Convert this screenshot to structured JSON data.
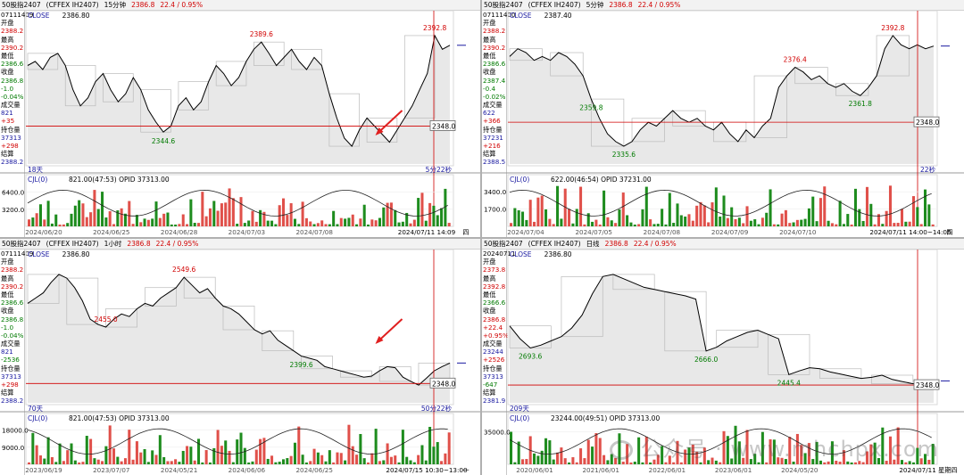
{
  "panels": [
    {
      "id": "p1",
      "title": {
        "symbol": "50股指2407",
        "code": "(CFFEX IH2407)",
        "period": "15分钟",
        "price": "2386.8",
        "change": "22.4 / 0.95%"
      },
      "date_code": "07111409",
      "close_text": "CLOSE",
      "close_value": "2386.80",
      "sidebar": [
        {
          "t": "开盘",
          "c": "k"
        },
        {
          "t": "2388.2",
          "c": "red"
        },
        {
          "t": "最高",
          "c": "k"
        },
        {
          "t": "2390.2",
          "c": "red"
        },
        {
          "t": "最低",
          "c": "k"
        },
        {
          "t": "2386.6",
          "c": "green"
        },
        {
          "t": "收盘",
          "c": "k"
        },
        {
          "t": "2386.8",
          "c": "green"
        },
        {
          "t": "-1.0",
          "c": "green"
        },
        {
          "t": "-0.04%",
          "c": "green"
        },
        {
          "t": "成交量",
          "c": "k"
        },
        {
          "t": "821",
          "c": "blue"
        },
        {
          "t": "+35",
          "c": "red"
        },
        {
          "t": "持仓量",
          "c": "k"
        },
        {
          "t": "37313",
          "c": "blue"
        },
        {
          "t": "+298",
          "c": "red"
        },
        {
          "t": "结算",
          "c": "k"
        },
        {
          "t": "2388.2",
          "c": "blue"
        }
      ],
      "bottom_left": "18天",
      "bottom_right": "5分22秒",
      "price_axis": "2348.0",
      "vol_label": "CJL(0)",
      "vol_info": "821.00(47:53)  OPID 37313.00",
      "vol_ticks": [
        "6400.0",
        "3200.0"
      ],
      "dates": [
        "2024/06/20",
        "2024/06/25",
        "2024/06/28",
        "2024/07/03",
        "2024/07/08",
        "2024/07/11 14:09",
        "四"
      ]
    },
    {
      "id": "p2",
      "title": {
        "symbol": "50股指2407",
        "code": "(CFFEX IH2407)",
        "period": "5分钟",
        "price": "2386.8",
        "change": "22.4 / 0.95%"
      },
      "date_code": "07111400",
      "close_text": "CLOSE",
      "close_value": "2387.40",
      "sidebar": [
        {
          "t": "开盘",
          "c": "k"
        },
        {
          "t": "2388.2",
          "c": "red"
        },
        {
          "t": "最高",
          "c": "k"
        },
        {
          "t": "2390.2",
          "c": "red"
        },
        {
          "t": "最低",
          "c": "k"
        },
        {
          "t": "2386.6",
          "c": "green"
        },
        {
          "t": "收盘",
          "c": "k"
        },
        {
          "t": "2387.4",
          "c": "green"
        },
        {
          "t": "-0.4",
          "c": "green"
        },
        {
          "t": "-0.02%",
          "c": "green"
        },
        {
          "t": "成交量",
          "c": "k"
        },
        {
          "t": "622",
          "c": "blue"
        },
        {
          "t": "+366",
          "c": "red"
        },
        {
          "t": "持仓量",
          "c": "k"
        },
        {
          "t": "37231",
          "c": "blue"
        },
        {
          "t": "+216",
          "c": "red"
        },
        {
          "t": "结算",
          "c": "k"
        },
        {
          "t": "2388.5",
          "c": "blue"
        }
      ],
      "bottom_left": "",
      "bottom_right": "22秒",
      "price_axis": "2348.0",
      "vol_label": "CJL(0)",
      "vol_info": "622.00(46:54)  OPID 37231.00",
      "vol_ticks": [
        "3400.0",
        "1700.0"
      ],
      "dates": [
        "2024/07/04",
        "2024/07/05",
        "2024/07/08",
        "2024/07/09",
        "2024/07/10",
        "2024/07/11 14:00~14:05",
        "四"
      ]
    },
    {
      "id": "p3",
      "title": {
        "symbol": "50股指2407",
        "code": "(CFFEX IH2407)",
        "period": "1小时",
        "price": "2386.8",
        "change": "22.4 / 0.95%"
      },
      "date_code": "07111409",
      "close_text": "CLOSE",
      "close_value": "2386.80",
      "sidebar": [
        {
          "t": "开盘",
          "c": "k"
        },
        {
          "t": "2388.2",
          "c": "red"
        },
        {
          "t": "最高",
          "c": "k"
        },
        {
          "t": "2390.2",
          "c": "red"
        },
        {
          "t": "最低",
          "c": "k"
        },
        {
          "t": "2386.6",
          "c": "green"
        },
        {
          "t": "收盘",
          "c": "k"
        },
        {
          "t": "2386.8",
          "c": "green"
        },
        {
          "t": "-1.0",
          "c": "green"
        },
        {
          "t": "-0.04%",
          "c": "green"
        },
        {
          "t": "成交量",
          "c": "k"
        },
        {
          "t": "821",
          "c": "blue"
        },
        {
          "t": "-2536",
          "c": "green"
        },
        {
          "t": "持仓量",
          "c": "k"
        },
        {
          "t": "37313",
          "c": "blue"
        },
        {
          "t": "+298",
          "c": "red"
        },
        {
          "t": "结算",
          "c": "k"
        },
        {
          "t": "2388.2",
          "c": "blue"
        }
      ],
      "bottom_left": "70天",
      "bottom_right": "50分22秒",
      "price_axis": "2348.0",
      "vol_label": "CJL(0)",
      "vol_info": "821.00(47:53)  OPID 37313.00",
      "vol_ticks": [
        "18000.0",
        "9000.0"
      ],
      "dates": [
        "2023/06/19",
        "2023/07/07",
        "2024/05/21",
        "2024/06/06",
        "2024/06/25",
        "2024/07/15 10:30~13:00",
        "一"
      ]
    },
    {
      "id": "p4",
      "title": {
        "symbol": "50股指2407",
        "code": "(CFFEX IH2407)",
        "period": "日线",
        "price": "2386.8",
        "change": "22.4 / 0.95%"
      },
      "date_code": "20240711",
      "close_text": "CLOSE",
      "close_value": "2386.80",
      "sidebar": [
        {
          "t": "开盘",
          "c": "k"
        },
        {
          "t": "2373.8",
          "c": "red"
        },
        {
          "t": "最高",
          "c": "k"
        },
        {
          "t": "2392.8",
          "c": "red"
        },
        {
          "t": "最低",
          "c": "k"
        },
        {
          "t": "2366.6",
          "c": "green"
        },
        {
          "t": "收盘",
          "c": "k"
        },
        {
          "t": "2386.8",
          "c": "red"
        },
        {
          "t": "+22.4",
          "c": "red"
        },
        {
          "t": "+0.95%",
          "c": "red"
        },
        {
          "t": "成交量",
          "c": "k"
        },
        {
          "t": "23244",
          "c": "blue"
        },
        {
          "t": "+2526",
          "c": "red"
        },
        {
          "t": "持仓量",
          "c": "k"
        },
        {
          "t": "37313",
          "c": "blue"
        },
        {
          "t": "-647",
          "c": "green"
        },
        {
          "t": "结算",
          "c": "k"
        },
        {
          "t": "2381.9",
          "c": "blue"
        }
      ],
      "bottom_left": "209天",
      "bottom_right": "",
      "price_axis": "2348.0",
      "vol_label": "CJL(0)",
      "vol_info": "23244.00(49:51)  OPID 37313.00",
      "vol_ticks": [
        "35000.0"
      ],
      "dates": [
        "2020/06/01",
        "2021/06/01",
        "2022/06/01",
        "2023/06/01",
        "2024/05/20",
        "2024/07/11 星期四"
      ]
    }
  ],
  "chart_data": [
    {
      "type": "line",
      "panel": "15分钟",
      "series": [
        {
          "values": [
            2378,
            2380,
            2376,
            2382,
            2384,
            2378,
            2366,
            2358,
            2362,
            2370,
            2374,
            2366,
            2360,
            2364,
            2372,
            2366,
            2356,
            2350,
            2345,
            2348,
            2358,
            2362,
            2356,
            2360,
            2370,
            2378,
            2374,
            2368,
            2372,
            2380,
            2386,
            2389.6,
            2384,
            2378,
            2382,
            2386,
            2380,
            2376,
            2382,
            2378,
            2364,
            2352,
            2342,
            2338,
            2346,
            2352,
            2348,
            2344,
            2340,
            2346,
            2352,
            2358,
            2366,
            2374,
            2392.8,
            2386,
            2388
          ]
        }
      ],
      "annotations": [
        {
          "text": "2389.6",
          "value": 2389.6
        },
        {
          "text": "2344.6",
          "value": 2344.6
        },
        {
          "text": "2392.8",
          "value": 2392.8
        }
      ],
      "hline": 2348.0,
      "volume": {
        "ylim": [
          0,
          8000
        ],
        "ticks": [
          6400,
          3200
        ]
      }
    },
    {
      "type": "line",
      "panel": "5分钟",
      "series": [
        {
          "values": [
            2382,
            2386,
            2384,
            2380,
            2382,
            2380,
            2384,
            2382,
            2378,
            2372,
            2360,
            2350,
            2342,
            2338,
            2335.6,
            2338,
            2344,
            2348,
            2346,
            2350,
            2354,
            2350,
            2348,
            2350,
            2346,
            2344,
            2348,
            2342,
            2338,
            2344,
            2340,
            2346,
            2350,
            2366,
            2372,
            2376.4,
            2374,
            2370,
            2372,
            2368,
            2366,
            2368,
            2364,
            2361.8,
            2366,
            2372,
            2386,
            2392.8,
            2388,
            2386,
            2388,
            2386,
            2387.4
          ]
        }
      ],
      "annotations": [
        {
          "text": "2359.8",
          "value": 2359.8
        },
        {
          "text": "2335.6",
          "value": 2335.6
        },
        {
          "text": "2376.4",
          "value": 2376.4
        },
        {
          "text": "2361.8",
          "value": 2361.8
        },
        {
          "text": "2392.8",
          "value": 2392.8
        }
      ],
      "hline": 2348.0,
      "volume": {
        "ylim": [
          0,
          4200
        ],
        "ticks": [
          3400,
          1700
        ]
      }
    },
    {
      "type": "line",
      "panel": "1小时",
      "series": [
        {
          "values": [
            2500,
            2510,
            2520,
            2540,
            2555,
            2548,
            2530,
            2505,
            2470,
            2460,
            2455,
            2470,
            2480,
            2475,
            2490,
            2500,
            2495,
            2510,
            2520,
            2530,
            2549.6,
            2535,
            2520,
            2528,
            2510,
            2495,
            2490,
            2480,
            2465,
            2450,
            2442,
            2448,
            2430,
            2420,
            2410,
            2400,
            2396,
            2392,
            2380,
            2376,
            2372,
            2368,
            2364,
            2360,
            2362,
            2372,
            2380,
            2378,
            2360,
            2352,
            2345,
            2358,
            2372,
            2380,
            2386.8
          ]
        }
      ],
      "annotations": [
        {
          "text": "2455.0",
          "value": 2455.0
        },
        {
          "text": "2549.6",
          "value": 2549.6
        },
        {
          "text": "2399.6",
          "value": 2399.6
        }
      ],
      "hline": 2348.0,
      "volume": {
        "ylim": [
          0,
          22000
        ],
        "ticks": [
          18000,
          9000
        ]
      }
    },
    {
      "type": "line",
      "panel": "日线",
      "series": [
        {
          "values": [
            2900,
            2780,
            2693.6,
            2720,
            2760,
            2800,
            2880,
            3000,
            3200,
            3360,
            3380,
            3340,
            3300,
            3260,
            3240,
            3220,
            3200,
            3180,
            3150,
            2666.0,
            2700,
            2760,
            2800,
            2840,
            2860,
            2820,
            2780,
            2445.4,
            2480,
            2510,
            2500,
            2470,
            2450,
            2430,
            2410,
            2420,
            2440,
            2400,
            2380,
            2360,
            2370,
            2386.8
          ]
        }
      ],
      "annotations": [
        {
          "text": "2693.6",
          "value": 2693.6
        },
        {
          "text": "2666.0",
          "value": 2666.0
        },
        {
          "text": "2445.4",
          "value": 2445.4
        }
      ],
      "hline": 2348.0,
      "volume": {
        "ylim": [
          0,
          45000
        ],
        "ticks": [
          35000
        ]
      }
    }
  ]
}
